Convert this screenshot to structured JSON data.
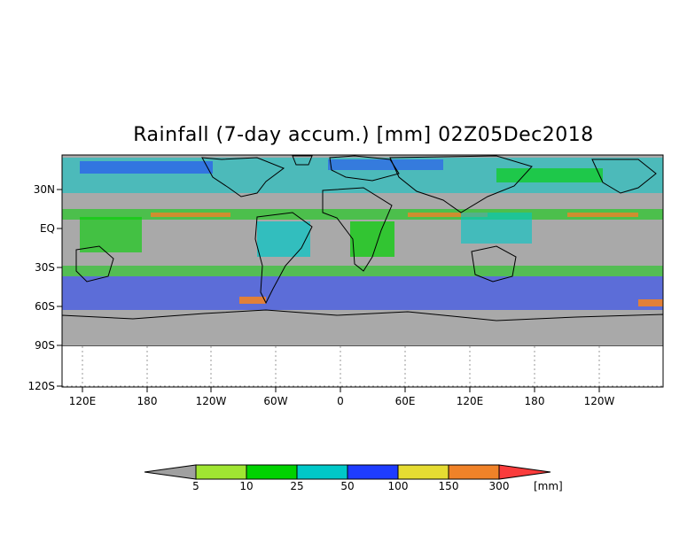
{
  "title": "Rainfall (7-day accum.) [mm] 02Z05Dec2018",
  "map": {
    "y_axis_labels": [
      "30N",
      "EQ",
      "30S",
      "60S",
      "90S",
      "120S"
    ],
    "x_axis_labels": [
      "120E",
      "180",
      "120W",
      "60W",
      "0",
      "60E",
      "120E",
      "180",
      "120W"
    ]
  },
  "colorbar": {
    "unit": "[mm]",
    "tick_labels": [
      "5",
      "10",
      "25",
      "50",
      "100",
      "150",
      "300"
    ],
    "colors": [
      "#a0a0a0",
      "#a0e632",
      "#00d200",
      "#00c8c8",
      "#1e3cff",
      "#e6dc32",
      "#f08228",
      "#fa3c3c"
    ]
  },
  "colors": {
    "no_rain": "#a9a9a9",
    "light": "#a0e632",
    "green": "#00d200",
    "cyan": "#00c8c8",
    "blue": "#1e3cff",
    "yellow": "#e6dc32",
    "orange": "#f08228",
    "red": "#fa3c3c"
  }
}
